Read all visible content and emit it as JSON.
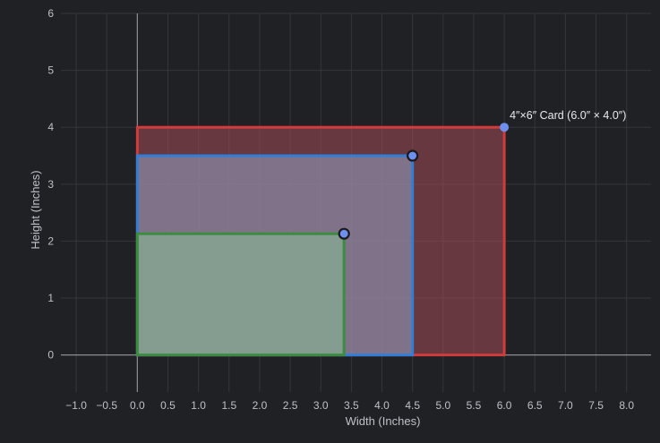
{
  "chart_data": {
    "type": "area",
    "xlabel": "Width (Inches)",
    "ylabel": "Height (Inches)",
    "xlim": [
      -1.25,
      8.4
    ],
    "ylim": [
      -0.65,
      6.0
    ],
    "x_ticks": [
      -1.0,
      -0.5,
      0.0,
      0.5,
      1.0,
      1.5,
      2.0,
      2.5,
      3.0,
      3.5,
      4.0,
      4.5,
      5.0,
      5.5,
      6.0,
      6.5,
      7.0,
      7.5,
      8.0
    ],
    "x_tick_labels": [
      "−1.0",
      "−0.5",
      "0.0",
      "0.5",
      "1.0",
      "1.5",
      "2.0",
      "2.5",
      "3.0",
      "3.5",
      "4.0",
      "4.5",
      "5.0",
      "5.5",
      "6.0",
      "6.5",
      "7.0",
      "7.5",
      "8.0"
    ],
    "y_ticks": [
      0,
      1,
      2,
      3,
      4,
      5,
      6
    ],
    "y_tick_labels": [
      "0",
      "1",
      "2",
      "3",
      "4",
      "5",
      "6"
    ],
    "grid": true,
    "background_color": "#202124",
    "grid_color": "#34363a",
    "axis_line_color": "#8a8d91",
    "series": [
      {
        "width": 6.0,
        "height": 4.0,
        "stroke": "#d23b3b",
        "fill": "#a24c55",
        "fill_opacity": 0.55
      },
      {
        "width": 4.5,
        "height": 3.5,
        "stroke": "#2f7ed8",
        "fill": "#8a8aa6",
        "fill_opacity": 0.72
      },
      {
        "width": 3.38,
        "height": 2.13,
        "stroke": "#3a8c3f",
        "fill": "#86a894",
        "fill_opacity": 0.78
      }
    ],
    "corner_points": [
      {
        "x": 6.0,
        "y": 4.0,
        "outlined": false
      },
      {
        "x": 4.5,
        "y": 3.5,
        "outlined": true
      },
      {
        "x": 3.38,
        "y": 2.13,
        "outlined": true
      }
    ],
    "point_color": "#6d8ff0",
    "annotations": [
      {
        "x": 6.0,
        "y": 4.0,
        "text": "4″×6″ Card (6.0″ × 4.0″)"
      }
    ]
  }
}
